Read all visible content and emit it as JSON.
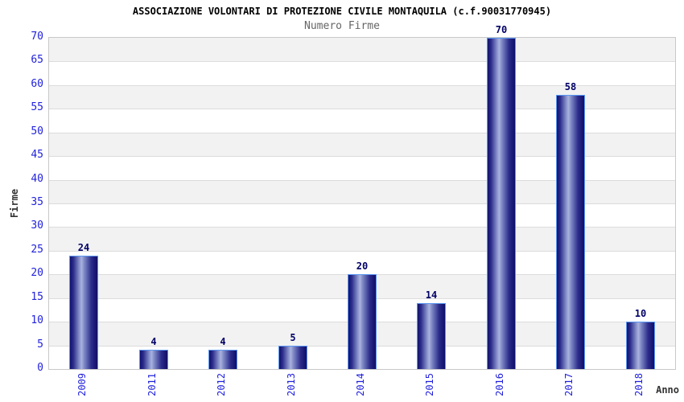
{
  "chart_data": {
    "type": "bar",
    "title": "ASSOCIAZIONE VOLONTARI DI PROTEZIONE CIVILE MONTAQUILA (c.f.90031770945)",
    "subtitle": "Numero Firme",
    "xlabel": "Anno",
    "ylabel": "Firme",
    "categories": [
      "2009",
      "2011",
      "2012",
      "2013",
      "2014",
      "2015",
      "2016",
      "2017",
      "2018"
    ],
    "values": [
      24,
      4,
      4,
      5,
      20,
      14,
      70,
      58,
      10
    ],
    "ylim": [
      0,
      70
    ],
    "ytick_step": 5,
    "grid": true,
    "legend_position": "none",
    "colors": {
      "bar_dark": "#12126e",
      "bar_highlight": "#aab2de",
      "bar_border": "#5b97f2",
      "tick_label": "#2222dd",
      "value_label": "#000066",
      "axis_title": "#333333",
      "band_gray": "#f2f2f2",
      "band_white": "#ffffff",
      "gridline": "#dcdcdc",
      "plot_border": "#c8c8c8",
      "title_color": "#000000",
      "subtitle_color": "#666666"
    }
  }
}
